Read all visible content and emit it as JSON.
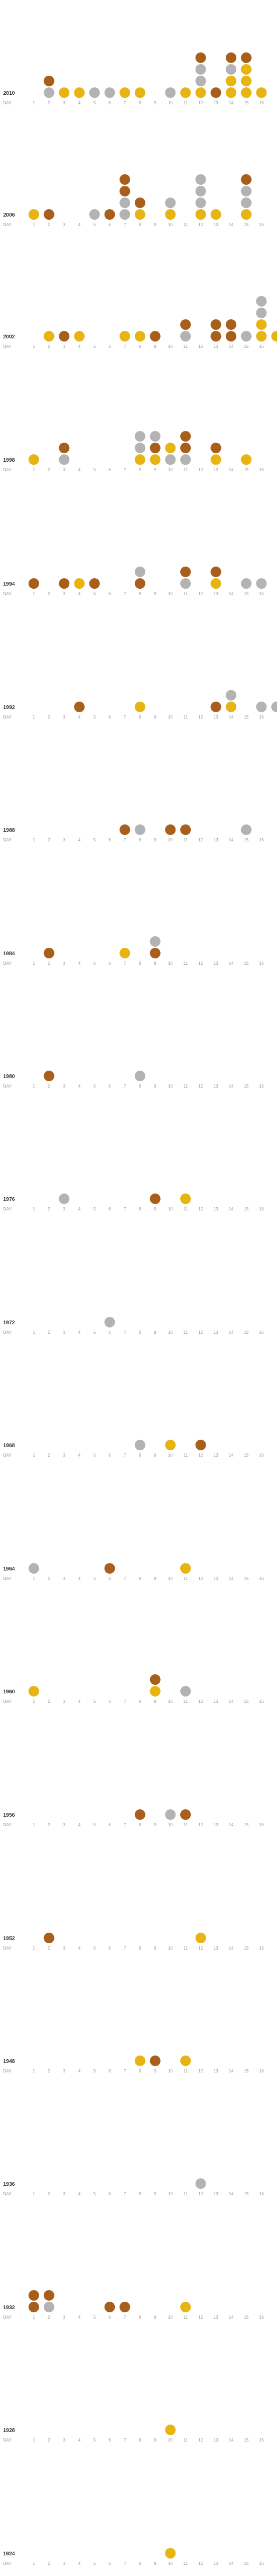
{
  "colors": {
    "gold": "#e8b412",
    "silver": "#b3b3b3",
    "bronze": "#a85f1c",
    "tick": "#999999",
    "year": "#333333"
  },
  "day_label": "DAY",
  "days": [
    "1",
    "2",
    "3",
    "4",
    "5",
    "6",
    "7",
    "8",
    "9",
    "10",
    "11",
    "12",
    "13",
    "14",
    "15",
    "16"
  ],
  "chart_data": {
    "type": "scatter",
    "description_visible": "stacked medal dots per competition day, one panel per Games year",
    "medal_order": [
      "gold",
      "silver",
      "bronze"
    ],
    "rows": [
      {
        "year": "2010",
        "days": {
          "1": [],
          "2": [
            "silver",
            "bronze"
          ],
          "3": [
            "gold"
          ],
          "4": [
            "gold"
          ],
          "5": [
            "silver"
          ],
          "6": [
            "silver"
          ],
          "7": [
            "gold"
          ],
          "8": [
            "gold"
          ],
          "9": [],
          "10": [
            "silver"
          ],
          "11": [
            "gold"
          ],
          "12": [
            "gold",
            "silver",
            "silver",
            "bronze"
          ],
          "13": [
            "bronze"
          ],
          "14": [
            "gold",
            "gold",
            "silver",
            "bronze"
          ],
          "15": [
            "gold",
            "gold",
            "gold",
            "bronze"
          ],
          "16": [
            "gold"
          ]
        }
      },
      {
        "year": "2006",
        "days": {
          "1": [
            "gold"
          ],
          "2": [
            "bronze"
          ],
          "3": [],
          "4": [],
          "5": [
            "silver"
          ],
          "6": [
            "bronze"
          ],
          "7": [
            "silver",
            "silver",
            "bronze",
            "bronze"
          ],
          "8": [
            "gold",
            "bronze"
          ],
          "9": [],
          "10": [
            "gold",
            "silver"
          ],
          "11": [],
          "12": [
            "gold",
            "silver",
            "silver",
            "silver"
          ],
          "13": [
            "gold"
          ],
          "14": [],
          "15": [
            "gold",
            "silver",
            "silver",
            "bronze"
          ],
          "16": []
        }
      },
      {
        "year": "2002",
        "days": {
          "1": [],
          "2": [
            "gold"
          ],
          "3": [
            "bronze"
          ],
          "4": [
            "gold"
          ],
          "5": [],
          "6": [],
          "7": [
            "gold"
          ],
          "8": [
            "gold"
          ],
          "9": [
            "bronze"
          ],
          "10": [],
          "11": [
            "silver",
            "bronze"
          ],
          "12": [],
          "13": [
            "bronze",
            "bronze"
          ],
          "14": [
            "bronze",
            "bronze"
          ],
          "15": [
            "silver"
          ],
          "16": [
            "gold",
            "gold",
            "silver",
            "silver"
          ],
          "17": [
            "gold"
          ]
        }
      },
      {
        "year": "1998",
        "days": {
          "1": [
            "gold"
          ],
          "2": [],
          "3": [
            "silver",
            "bronze"
          ],
          "4": [],
          "5": [],
          "6": [],
          "7": [],
          "8": [
            "gold",
            "silver",
            "silver"
          ],
          "9": [
            "gold",
            "bronze",
            "silver"
          ],
          "10": [
            "silver",
            "gold"
          ],
          "11": [
            "silver",
            "bronze",
            "bronze"
          ],
          "12": [],
          "13": [
            "gold",
            "bronze"
          ],
          "14": [],
          "15": [
            "gold"
          ],
          "16": []
        }
      },
      {
        "year": "1994",
        "days": {
          "1": [
            "bronze"
          ],
          "2": [],
          "3": [
            "bronze"
          ],
          "4": [
            "gold"
          ],
          "5": [
            "bronze"
          ],
          "6": [],
          "7": [],
          "8": [
            "bronze",
            "silver"
          ],
          "9": [],
          "10": [],
          "11": [
            "silver",
            "bronze"
          ],
          "12": [],
          "13": [
            "gold",
            "bronze"
          ],
          "14": [],
          "15": [
            "silver"
          ],
          "16": [
            "silver"
          ]
        }
      },
      {
        "year": "1992",
        "days": {
          "1": [],
          "2": [],
          "3": [],
          "4": [
            "bronze"
          ],
          "5": [],
          "6": [],
          "7": [],
          "8": [
            "gold"
          ],
          "9": [],
          "10": [],
          "11": [],
          "12": [],
          "13": [
            "bronze"
          ],
          "14": [
            "gold",
            "silver"
          ],
          "15": [],
          "16": [
            "silver"
          ],
          "17": [
            "silver"
          ]
        }
      },
      {
        "year": "1988",
        "days": {
          "1": [],
          "2": [],
          "3": [],
          "4": [],
          "5": [],
          "6": [],
          "7": [
            "bronze"
          ],
          "8": [
            "silver"
          ],
          "9": [],
          "10": [
            "bronze"
          ],
          "11": [
            "bronze"
          ],
          "12": [],
          "13": [],
          "14": [],
          "15": [
            "silver"
          ],
          "16": []
        }
      },
      {
        "year": "1984",
        "days": {
          "1": [],
          "2": [
            "bronze"
          ],
          "3": [],
          "4": [],
          "5": [],
          "6": [],
          "7": [
            "gold"
          ],
          "8": [],
          "9": [
            "bronze",
            "silver"
          ],
          "10": [],
          "11": [],
          "12": [],
          "13": [],
          "14": [],
          "15": [],
          "16": []
        }
      },
      {
        "year": "1980",
        "days": {
          "1": [],
          "2": [
            "bronze"
          ],
          "3": [],
          "4": [],
          "5": [],
          "6": [],
          "7": [],
          "8": [
            "silver"
          ],
          "9": [],
          "10": [],
          "11": [],
          "12": [],
          "13": [],
          "14": [],
          "15": [],
          "16": []
        }
      },
      {
        "year": "1976",
        "days": {
          "1": [],
          "2": [],
          "3": [
            "silver"
          ],
          "4": [],
          "5": [],
          "6": [],
          "7": [],
          "8": [],
          "9": [
            "bronze"
          ],
          "10": [],
          "11": [
            "gold"
          ],
          "12": [],
          "13": [],
          "14": [],
          "15": [],
          "16": []
        }
      },
      {
        "year": "1972",
        "days": {
          "1": [],
          "2": [],
          "3": [],
          "4": [],
          "5": [],
          "6": [
            "silver"
          ],
          "7": [],
          "8": [],
          "9": [],
          "10": [],
          "11": [],
          "12": [],
          "13": [],
          "14": [],
          "15": [],
          "16": []
        }
      },
      {
        "year": "1968",
        "days": {
          "1": [],
          "2": [],
          "3": [],
          "4": [],
          "5": [],
          "6": [],
          "7": [],
          "8": [
            "silver"
          ],
          "9": [],
          "10": [
            "gold"
          ],
          "11": [],
          "12": [
            "bronze"
          ],
          "13": [],
          "14": [],
          "15": [],
          "16": []
        }
      },
      {
        "year": "1964",
        "days": {
          "1": [
            "silver"
          ],
          "2": [],
          "3": [],
          "4": [],
          "5": [],
          "6": [
            "bronze"
          ],
          "7": [],
          "8": [],
          "9": [],
          "10": [],
          "11": [
            "gold"
          ],
          "12": [],
          "13": [],
          "14": [],
          "15": [],
          "16": []
        }
      },
      {
        "year": "1960",
        "days": {
          "1": [
            "gold"
          ],
          "2": [],
          "3": [],
          "4": [],
          "5": [],
          "6": [],
          "7": [],
          "8": [],
          "9": [
            "gold",
            "bronze"
          ],
          "10": [],
          "11": [
            "silver"
          ],
          "12": [],
          "13": [],
          "14": [],
          "15": [],
          "16": []
        }
      },
      {
        "year": "1956",
        "days": {
          "1": [],
          "2": [],
          "3": [],
          "4": [],
          "5": [],
          "6": [],
          "7": [],
          "8": [
            "bronze"
          ],
          "9": [],
          "10": [
            "silver"
          ],
          "11": [
            "bronze"
          ],
          "12": [],
          "13": [],
          "14": [],
          "15": [],
          "16": []
        }
      },
      {
        "year": "1952",
        "days": {
          "1": [],
          "2": [
            "bronze"
          ],
          "3": [],
          "4": [],
          "5": [],
          "6": [],
          "7": [],
          "8": [],
          "9": [],
          "10": [],
          "11": [],
          "12": [
            "gold"
          ],
          "13": [],
          "14": [],
          "15": [],
          "16": []
        }
      },
      {
        "year": "1948",
        "days": {
          "1": [],
          "2": [],
          "3": [],
          "4": [],
          "5": [],
          "6": [],
          "7": [],
          "8": [
            "gold"
          ],
          "9": [
            "bronze"
          ],
          "10": [],
          "11": [
            "gold"
          ],
          "12": [],
          "13": [],
          "14": [],
          "15": [],
          "16": []
        }
      },
      {
        "year": "1936",
        "days": {
          "1": [],
          "2": [],
          "3": [],
          "4": [],
          "5": [],
          "6": [],
          "7": [],
          "8": [],
          "9": [],
          "10": [],
          "11": [],
          "12": [
            "silver"
          ],
          "13": [],
          "14": [],
          "15": [],
          "16": []
        }
      },
      {
        "year": "1932",
        "days": {
          "1": [
            "bronze",
            "bronze"
          ],
          "2": [
            "silver",
            "bronze"
          ],
          "3": [],
          "4": [],
          "5": [],
          "6": [
            "bronze"
          ],
          "7": [
            "bronze"
          ],
          "8": [],
          "9": [],
          "10": [],
          "11": [
            "gold"
          ],
          "12": [],
          "13": [],
          "14": [],
          "15": [],
          "16": []
        }
      },
      {
        "year": "1928",
        "days": {
          "1": [],
          "2": [],
          "3": [],
          "4": [],
          "5": [],
          "6": [],
          "7": [],
          "8": [],
          "9": [],
          "10": [
            "gold"
          ],
          "11": [],
          "12": [],
          "13": [],
          "14": [],
          "15": [],
          "16": []
        }
      },
      {
        "year": "1924",
        "days": {
          "1": [],
          "2": [],
          "3": [],
          "4": [],
          "5": [],
          "6": [],
          "7": [],
          "8": [],
          "9": [],
          "10": [
            "gold"
          ],
          "11": [],
          "12": [],
          "13": [],
          "14": [],
          "15": [],
          "16": []
        }
      }
    ]
  }
}
